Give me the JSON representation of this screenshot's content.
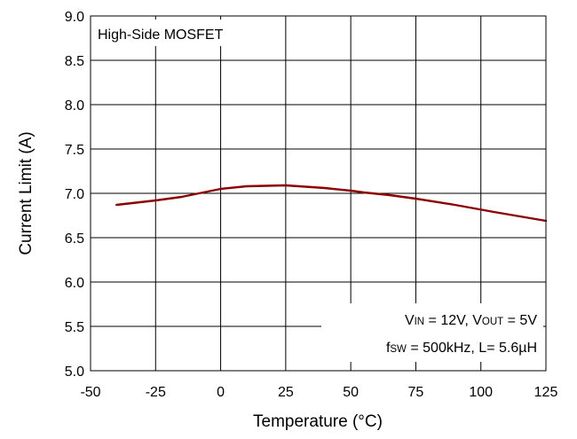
{
  "chart_data": {
    "type": "line",
    "title": "",
    "xlabel": "Temperature (°C)",
    "ylabel": "Current Limit (A)",
    "xlim": [
      -50,
      125
    ],
    "ylim": [
      5.0,
      9.0
    ],
    "x_ticks": [
      -50,
      -25,
      0,
      25,
      50,
      75,
      100,
      125
    ],
    "y_ticks": [
      5.0,
      5.5,
      6.0,
      6.5,
      7.0,
      7.5,
      8.0,
      8.5,
      9.0
    ],
    "x_tick_labels": [
      "-50",
      "-25",
      "0",
      "25",
      "50",
      "75",
      "100",
      "125"
    ],
    "y_tick_labels": [
      "5.0",
      "5.5",
      "6.0",
      "6.5",
      "7.0",
      "7.5",
      "8.0",
      "8.5",
      "9.0"
    ],
    "grid": true,
    "line_color": "#8b0000",
    "series": [
      {
        "x": [
          -40,
          -25,
          -15,
          -5,
          0,
          10,
          25,
          40,
          50,
          55,
          65,
          75,
          90,
          105,
          115,
          125
        ],
        "values": [
          6.87,
          6.92,
          6.96,
          7.02,
          7.05,
          7.08,
          7.09,
          7.06,
          7.03,
          7.01,
          6.98,
          6.94,
          6.87,
          6.79,
          6.74,
          6.69
        ]
      }
    ],
    "annotations": {
      "box_label": "High-Side MOSFET",
      "cond_line1": {
        "v1_main": "V",
        "v1_sub": "IN",
        "v1_rest": " = 12V, ",
        "v2_main": "V",
        "v2_sub": "OUT",
        "v2_rest": " = 5V"
      },
      "cond_line2": {
        "f_main": "f",
        "f_sub": "SW",
        "f_rest": " = 500kHz, L= 5.6µH"
      }
    }
  }
}
